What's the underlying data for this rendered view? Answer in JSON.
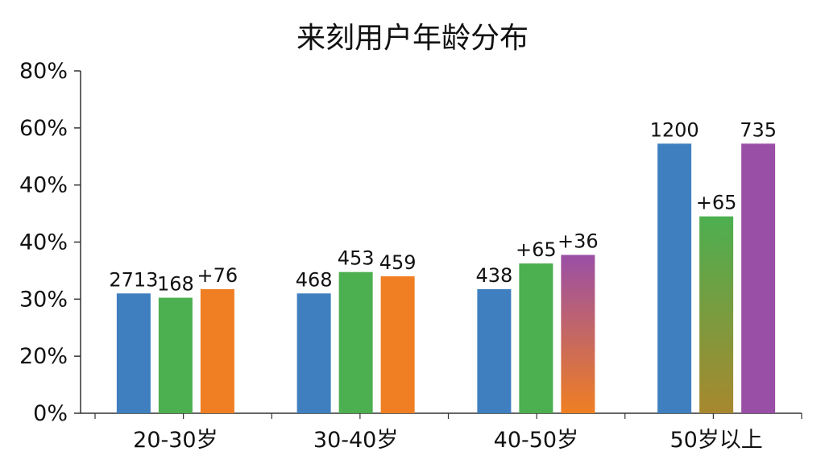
{
  "chart_data": {
    "type": "bar",
    "title": "来刻用户年龄分布",
    "xlabel": "",
    "ylabel": "",
    "categories": [
      "20-30岁",
      "30-40岁",
      "40-50岁",
      "50岁以上"
    ],
    "y_tick_labels": [
      "0%",
      "20%",
      "30%",
      "40%",
      "40%",
      "60%",
      "80%"
    ],
    "ylim": [
      0,
      80
    ],
    "grid": false,
    "legend": "none",
    "bars_per_group": [
      [
        {
          "value": 28,
          "label": "2713",
          "color": "#3f7fbf"
        },
        {
          "value": 27,
          "label": "168",
          "color": "#4caf50"
        },
        {
          "value": 29,
          "label": "+76",
          "color": "#ef7f22"
        }
      ],
      [
        {
          "value": 28,
          "label": "468",
          "color": "#3f7fbf"
        },
        {
          "value": 33,
          "label": "453",
          "color": "#4caf50"
        },
        {
          "value": 32,
          "label": "459",
          "color": "#ef7f22"
        }
      ],
      [
        {
          "value": 29,
          "label": "438",
          "color": "#3f7fbf"
        },
        {
          "value": 35,
          "label": "+65",
          "color": "#4caf50"
        },
        {
          "value": 37,
          "label": "+36",
          "color": "gradient-purple-orange",
          "label_color": "#8e3fa0"
        }
      ],
      [
        {
          "value": 63,
          "label": "1200",
          "color": "#3f7fbf"
        },
        {
          "value": 46,
          "label": "+65",
          "color": "gradient-green-olive"
        },
        {
          "value": 63,
          "label": "735",
          "color": "#9a4fa6"
        }
      ]
    ]
  }
}
